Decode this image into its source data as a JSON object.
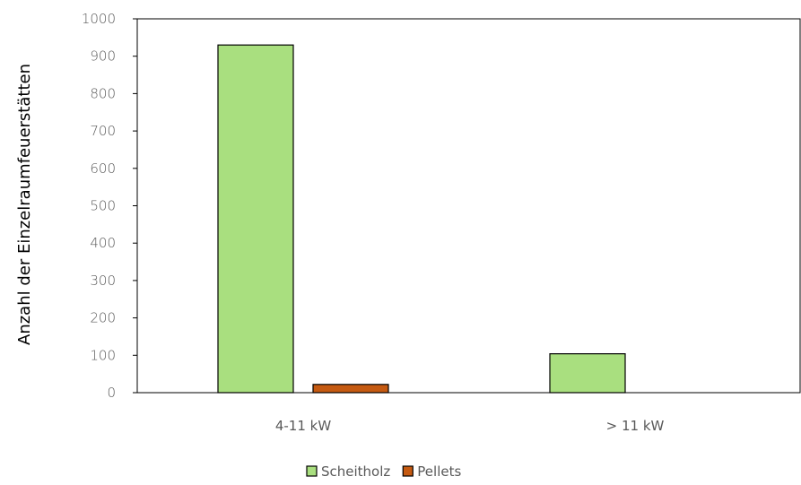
{
  "chart_data": {
    "type": "bar",
    "title": "",
    "xlabel": "",
    "ylabel": "Anzahl der Einzelraumfeuerstätten",
    "categories": [
      "4-11 kW",
      "> 11 kW"
    ],
    "series": [
      {
        "name": "Scheitholz",
        "values": [
          930,
          104
        ],
        "color": "#a9df7f"
      },
      {
        "name": "Pellets",
        "values": [
          22,
          0
        ],
        "color": "#c55a11"
      }
    ],
    "ylim": [
      0,
      1000
    ],
    "yticks": [
      0,
      100,
      200,
      300,
      400,
      500,
      600,
      700,
      800,
      900,
      1000
    ],
    "grid": false,
    "legend_position": "bottom"
  }
}
